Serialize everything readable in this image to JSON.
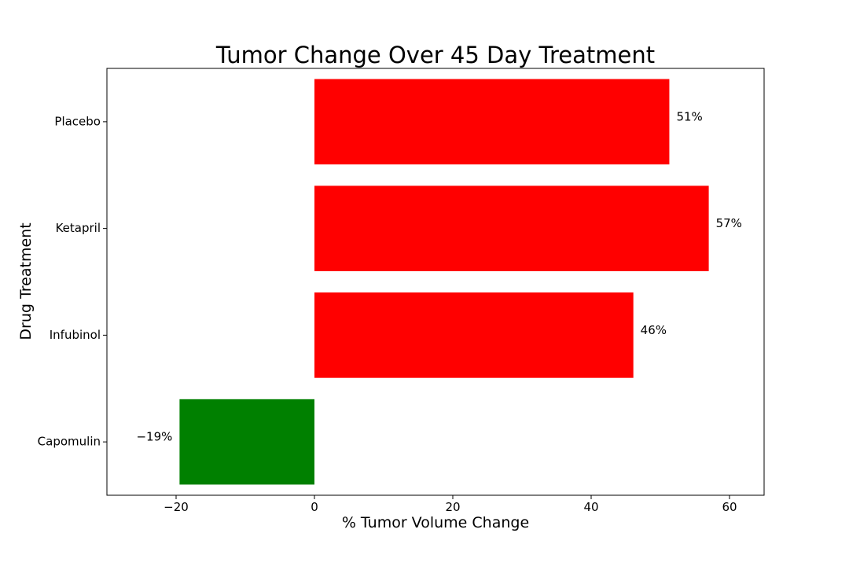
{
  "chart_data": {
    "type": "bar",
    "orientation": "horizontal",
    "title": "Tumor Change Over 45 Day Treatment",
    "xlabel": "% Tumor Volume Change",
    "ylabel": "Drug Treatment",
    "xlim": [
      -30,
      65
    ],
    "x_ticks": [
      -20,
      0,
      20,
      40,
      60
    ],
    "x_tick_labels": [
      "−20",
      "0",
      "20",
      "40",
      "60"
    ],
    "categories": [
      "Capomulin",
      "Infubinol",
      "Ketapril",
      "Placebo"
    ],
    "values": [
      -19.5,
      46.1,
      57.0,
      51.3
    ],
    "data_labels": [
      "−19%",
      "46%",
      "57%",
      "51%"
    ],
    "colors": [
      "#008000",
      "#ff0000",
      "#ff0000",
      "#ff0000"
    ],
    "grid": false,
    "legend": "none"
  }
}
